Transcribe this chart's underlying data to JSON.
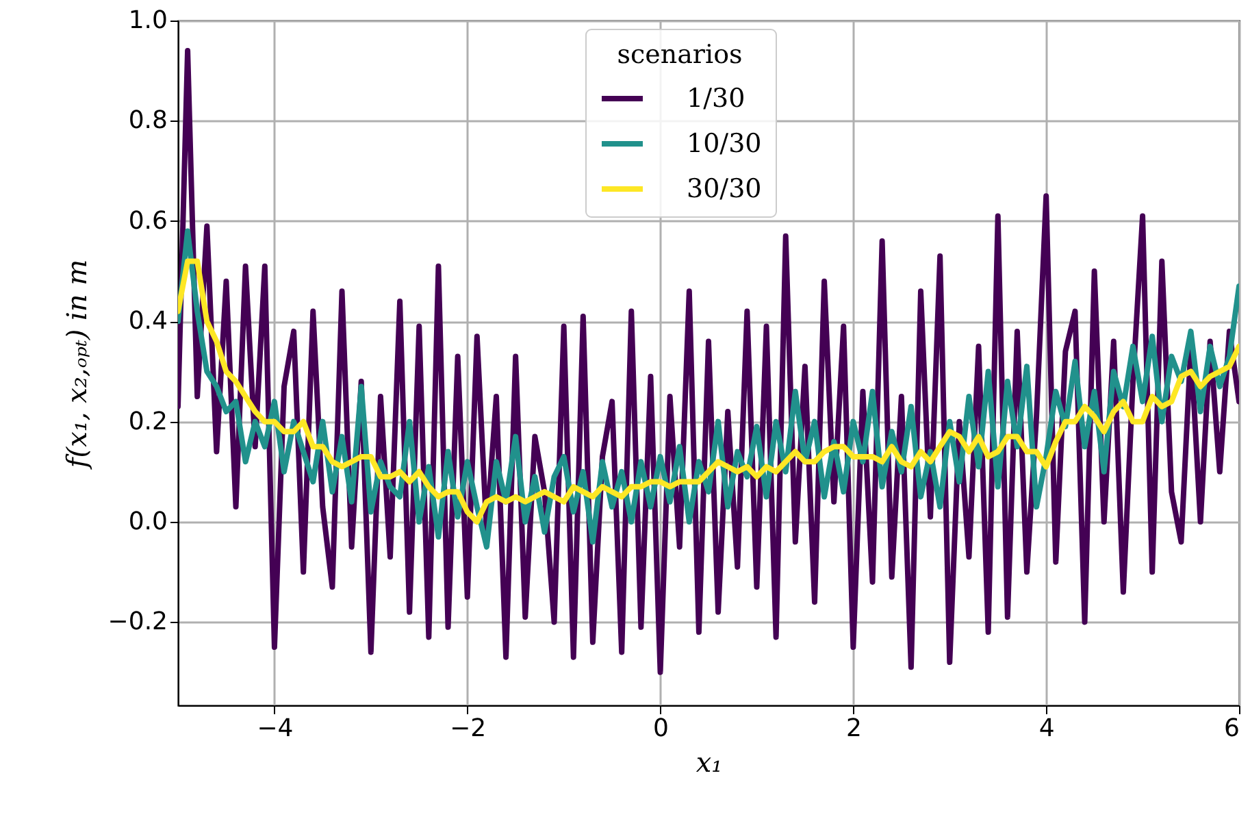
{
  "chart_data": {
    "type": "line",
    "xlabel": "x₁",
    "ylabel": "f(x₁, x₂,ₒₚₜ) in m",
    "legend_title": "scenarios",
    "legend": "top",
    "grid": true,
    "line_style": "solid",
    "xlim": [
      -5,
      6
    ],
    "xticks": [
      {
        "value": -4,
        "label": "−4"
      },
      {
        "value": -2,
        "label": "−2"
      },
      0,
      2,
      4,
      6
    ],
    "ylim": [
      -0.366,
      1.0
    ],
    "yticks": [
      {
        "value": -0.2,
        "label": "−0.2"
      },
      {
        "value": 0,
        "label": "0.0"
      },
      0.2,
      0.4,
      0.6,
      0.8,
      {
        "value": 1,
        "label": "1.0"
      }
    ],
    "x": [
      -5.0,
      -4.9,
      -4.8,
      -4.7,
      -4.6,
      -4.5,
      -4.4,
      -4.3,
      -4.2,
      -4.1,
      -4.0,
      -3.9,
      -3.8,
      -3.7,
      -3.6,
      -3.5,
      -3.4,
      -3.3,
      -3.2,
      -3.1,
      -3.0,
      -2.9,
      -2.8,
      -2.7,
      -2.6,
      -2.5,
      -2.4,
      -2.3,
      -2.2,
      -2.1,
      -2.0,
      -1.9,
      -1.8,
      -1.7,
      -1.6,
      -1.5,
      -1.4,
      -1.3,
      -1.2,
      -1.1,
      -1.0,
      -0.9,
      -0.8,
      -0.7,
      -0.6,
      -0.5,
      -0.4,
      -0.3,
      -0.2,
      -0.1,
      0.0,
      0.1,
      0.2,
      0.3,
      0.4,
      0.5,
      0.6,
      0.7,
      0.8,
      0.9,
      1.0,
      1.1,
      1.2,
      1.3,
      1.4,
      1.5,
      1.6,
      1.7,
      1.8,
      1.9,
      2.0,
      2.1,
      2.2,
      2.3,
      2.4,
      2.5,
      2.6,
      2.7,
      2.8,
      2.9,
      3.0,
      3.1,
      3.2,
      3.3,
      3.4,
      3.5,
      3.6,
      3.7,
      3.8,
      3.9,
      4.0,
      4.1,
      4.2,
      4.3,
      4.4,
      4.5,
      4.6,
      4.7,
      4.8,
      4.9,
      5.0,
      5.1,
      5.2,
      5.3,
      5.4,
      5.5,
      5.6,
      5.7,
      5.8,
      5.9,
      6.0
    ],
    "series": [
      {
        "name": "1/30",
        "color": "#440154",
        "values": [
          0.23,
          0.94,
          0.25,
          0.59,
          0.14,
          0.48,
          0.03,
          0.51,
          0.15,
          0.51,
          -0.25,
          0.27,
          0.38,
          -0.1,
          0.42,
          0.03,
          -0.13,
          0.46,
          -0.05,
          0.28,
          -0.26,
          0.25,
          -0.07,
          0.44,
          -0.18,
          0.39,
          -0.23,
          0.51,
          -0.21,
          0.33,
          -0.15,
          0.37,
          -0.02,
          0.25,
          -0.27,
          0.33,
          -0.19,
          0.17,
          0.06,
          -0.2,
          0.39,
          -0.27,
          0.41,
          -0.24,
          0.13,
          0.24,
          -0.26,
          0.42,
          -0.21,
          0.29,
          -0.3,
          0.25,
          -0.05,
          0.46,
          -0.22,
          0.36,
          -0.18,
          0.22,
          -0.09,
          0.42,
          -0.13,
          0.39,
          -0.23,
          0.57,
          -0.04,
          0.31,
          -0.16,
          0.48,
          0.04,
          0.39,
          -0.25,
          0.26,
          -0.12,
          0.56,
          -0.11,
          0.25,
          -0.29,
          0.46,
          0.01,
          0.53,
          -0.28,
          0.2,
          -0.07,
          0.35,
          -0.22,
          0.61,
          -0.19,
          0.38,
          -0.1,
          0.21,
          0.65,
          -0.08,
          0.34,
          0.42,
          -0.2,
          0.5,
          0.0,
          0.36,
          -0.14,
          0.28,
          0.61,
          -0.1,
          0.52,
          0.06,
          -0.04,
          0.35,
          0.0,
          0.36,
          0.1,
          0.38,
          0.24
        ]
      },
      {
        "name": "10/30",
        "color": "#21918c",
        "values": [
          0.4,
          0.58,
          0.42,
          0.3,
          0.27,
          0.22,
          0.24,
          0.12,
          0.2,
          0.15,
          0.24,
          0.1,
          0.2,
          0.14,
          0.08,
          0.2,
          0.06,
          0.17,
          0.04,
          0.27,
          0.02,
          0.12,
          0.07,
          0.05,
          0.2,
          0.0,
          0.11,
          -0.03,
          0.14,
          0.01,
          0.12,
          0.03,
          -0.05,
          0.12,
          0.04,
          0.17,
          0.0,
          0.09,
          -0.02,
          0.09,
          0.13,
          0.02,
          0.1,
          -0.04,
          0.12,
          0.03,
          0.1,
          0.0,
          0.12,
          0.03,
          0.13,
          0.04,
          0.15,
          0.0,
          0.12,
          0.06,
          0.2,
          0.03,
          0.14,
          0.09,
          0.19,
          0.05,
          0.2,
          0.1,
          0.26,
          0.12,
          0.2,
          0.05,
          0.16,
          0.06,
          0.2,
          0.12,
          0.26,
          0.07,
          0.18,
          0.1,
          0.23,
          0.05,
          0.14,
          0.03,
          0.2,
          0.08,
          0.25,
          0.11,
          0.3,
          0.07,
          0.28,
          0.15,
          0.31,
          0.03,
          0.13,
          0.26,
          0.19,
          0.32,
          0.15,
          0.26,
          0.1,
          0.3,
          0.23,
          0.35,
          0.24,
          0.37,
          0.2,
          0.33,
          0.28,
          0.38,
          0.22,
          0.35,
          0.27,
          0.33,
          0.47
        ]
      },
      {
        "name": "30/30",
        "color": "#fde725",
        "values": [
          0.42,
          0.52,
          0.52,
          0.4,
          0.36,
          0.3,
          0.28,
          0.25,
          0.22,
          0.2,
          0.2,
          0.18,
          0.18,
          0.2,
          0.15,
          0.15,
          0.12,
          0.11,
          0.12,
          0.13,
          0.13,
          0.09,
          0.09,
          0.1,
          0.08,
          0.1,
          0.07,
          0.05,
          0.06,
          0.06,
          0.02,
          0.0,
          0.04,
          0.05,
          0.04,
          0.05,
          0.04,
          0.05,
          0.06,
          0.05,
          0.04,
          0.07,
          0.06,
          0.05,
          0.07,
          0.06,
          0.05,
          0.07,
          0.07,
          0.08,
          0.08,
          0.07,
          0.08,
          0.08,
          0.08,
          0.1,
          0.12,
          0.11,
          0.1,
          0.11,
          0.09,
          0.11,
          0.1,
          0.12,
          0.14,
          0.12,
          0.12,
          0.14,
          0.15,
          0.15,
          0.13,
          0.13,
          0.13,
          0.12,
          0.15,
          0.12,
          0.11,
          0.14,
          0.12,
          0.15,
          0.18,
          0.17,
          0.14,
          0.17,
          0.13,
          0.14,
          0.17,
          0.17,
          0.14,
          0.14,
          0.11,
          0.16,
          0.2,
          0.2,
          0.23,
          0.21,
          0.18,
          0.22,
          0.24,
          0.2,
          0.2,
          0.25,
          0.23,
          0.24,
          0.29,
          0.3,
          0.27,
          0.29,
          0.3,
          0.31,
          0.35
        ]
      }
    ]
  }
}
